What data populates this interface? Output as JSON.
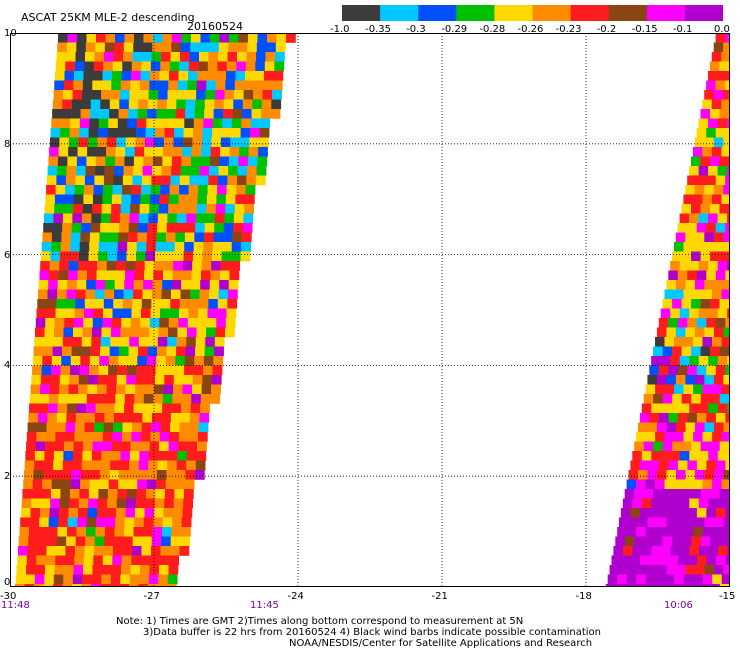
{
  "header": {
    "title": "ASCAT 25KM MLE-2 descending",
    "date": "20160524"
  },
  "colorbar": {
    "labels": [
      "-1.0",
      "-0.35",
      "-0.3",
      "-0.29",
      "-0.28",
      "-0.26",
      "-0.23",
      "-0.2",
      "-0.15",
      "-0.1",
      "0.0"
    ],
    "colors": [
      "#3c3c3c",
      "#00c8ff",
      "#0050ff",
      "#00c000",
      "#ffd800",
      "#ff8c00",
      "#ff1c1c",
      "#8b4513",
      "#ff00ff",
      "#b000d0"
    ]
  },
  "axes": {
    "x_ticks": [
      "-30",
      "-27",
      "-24",
      "-21",
      "-18",
      "-15"
    ],
    "y_ticks": [
      "0",
      "2",
      "4",
      "6",
      "8",
      "10"
    ],
    "x_range": [
      -30,
      -15
    ],
    "y_range": [
      0,
      10
    ],
    "grid": true
  },
  "times": [
    "11:48",
    "11:45",
    "10:06"
  ],
  "notes": {
    "line1": "Note: 1) Times are GMT 2)Times along bottom correspond to measurement at 5N",
    "line2": "3)Data buffer is 22 hrs from 20160524 4) Black wind barbs indicate possible contamination",
    "line3": "NOAA/NESDIS/Center for Satellite Applications and Research"
  },
  "swaths": [
    {
      "name": "west",
      "left_at_top_lon": -29.0,
      "left_at_bottom_lon": -29.9,
      "right_at_top_lon": -24.2,
      "right_at_bottom_lon": -26.6
    },
    {
      "name": "east",
      "left_at_top_lon": -15.3,
      "left_at_bottom_lon": -17.6,
      "right_at_top_lon": -15.0,
      "right_at_bottom_lon": -15.0
    }
  ]
}
